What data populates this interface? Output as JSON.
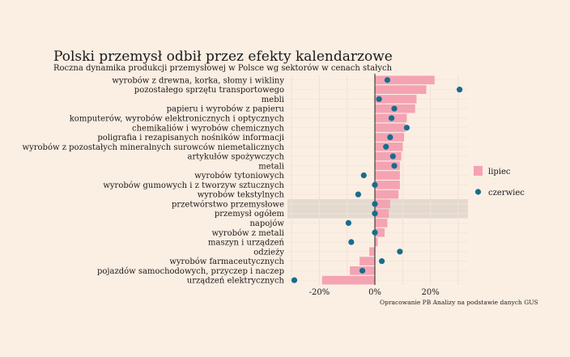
{
  "chart_data": {
    "type": "bar",
    "title": "Polski przemysł odbił przez efekty kalendarzowe",
    "subtitle": "Roczna dynamika produkcji przemysłowej w Polsce wg sektorów w cenach stałych",
    "caption": "Opracowanie PB Analizy na podstawie danych GUS",
    "xlabel": "",
    "ylabel": "",
    "xlim": [
      -30,
      32
    ],
    "xticks": [
      -20,
      0,
      20
    ],
    "tick_labels": [
      "-20%",
      "0%",
      "20%"
    ],
    "grid": true,
    "legend_position": "right",
    "highlighted": [
      "przetwórstwo przemysłowe",
      "przemysł ogółem"
    ],
    "categories": [
      "wyrobów z drewna, korka, słomy i wikliny",
      "pozostałego sprzętu transportowego",
      "mebli",
      "papieru i wyrobów z papieru",
      "komputerów, wyrobów elektronicznych i optycznych",
      "chemikaliów i wyrobów chemicznych",
      "poligrafia i rezapisanych nośników informacji",
      "wyrobów z pozostałych mineralnych surowców niemetalicznych",
      "artykułów spożywczych",
      "metali",
      "wyrobów tytoniowych",
      "wyrobów gumowych i z tworzyw sztucznych",
      "wyrobów tekstylnych",
      "przetwórstwo przemysłowe",
      "przemysł ogółem",
      "napojów",
      "wyrobów z metali",
      "maszyn i urządzeń",
      "odzieży",
      "wyrobów farmaceutycznych",
      "pojazdów samochodowych, przyczep i naczep",
      "urządzeń elektrycznych"
    ],
    "series": [
      {
        "name": "lipiec",
        "kind": "bar",
        "color": "#f4a3b3",
        "values": [
          21.5,
          18.5,
          15.0,
          14.5,
          11.5,
          11.0,
          10.5,
          10.0,
          9.5,
          9.0,
          9.0,
          9.0,
          8.5,
          5.5,
          5.0,
          4.5,
          3.5,
          1.0,
          -2.0,
          -5.5,
          -9.0,
          -19.0
        ]
      },
      {
        "name": "czerwiec",
        "kind": "point",
        "color": "#176d8d",
        "values": [
          4.5,
          30.5,
          1.5,
          7.0,
          6.0,
          11.5,
          5.5,
          4.0,
          6.5,
          7.0,
          -4.0,
          0.0,
          -6.0,
          0.0,
          0.0,
          -9.5,
          0.0,
          -8.5,
          9.0,
          2.5,
          -4.5,
          -29.0
        ]
      }
    ]
  }
}
